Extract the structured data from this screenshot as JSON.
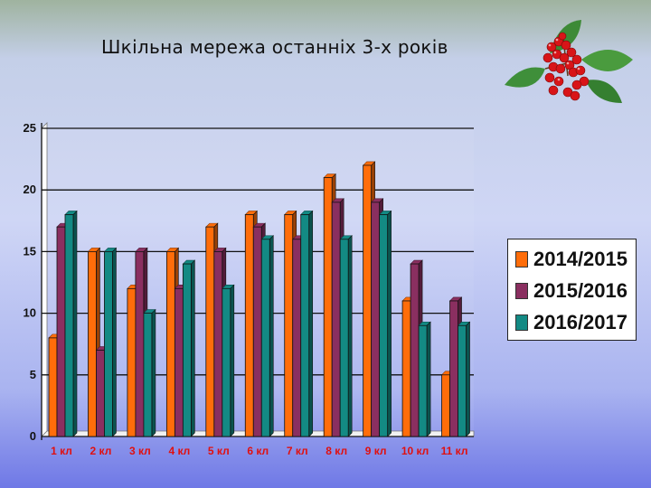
{
  "title": "Шкільна мережа останніх 3-х років",
  "decoration": "viburnum-berries-icon",
  "colors": {
    "2014/2015": "#ff6d0a",
    "2015/2016": "#8a2f60",
    "2016/2017": "#138a84",
    "axis_labels": "#e01010"
  },
  "chart_data": {
    "type": "bar",
    "title": "Шкільна мережа останніх 3-х років",
    "categories": [
      "1 кл",
      "2 кл",
      "3 кл",
      "4 кл",
      "5 кл",
      "6 кл",
      "7 кл",
      "8 кл",
      "9 кл",
      "10 кл",
      "11 кл"
    ],
    "series": [
      {
        "name": "2014/2015",
        "values": [
          8,
          15,
          12,
          15,
          17,
          18,
          18,
          21,
          22,
          11,
          5
        ]
      },
      {
        "name": "2015/2016",
        "values": [
          17,
          7,
          15,
          12,
          15,
          17,
          16,
          19,
          19,
          14,
          11
        ]
      },
      {
        "name": "2016/2017",
        "values": [
          18,
          15,
          10,
          14,
          12,
          16,
          18,
          16,
          18,
          9,
          9
        ]
      }
    ],
    "ylim": [
      0,
      25
    ],
    "yticks": [
      0,
      5,
      10,
      15,
      20,
      25
    ],
    "grid": true,
    "legend_position": "right"
  }
}
